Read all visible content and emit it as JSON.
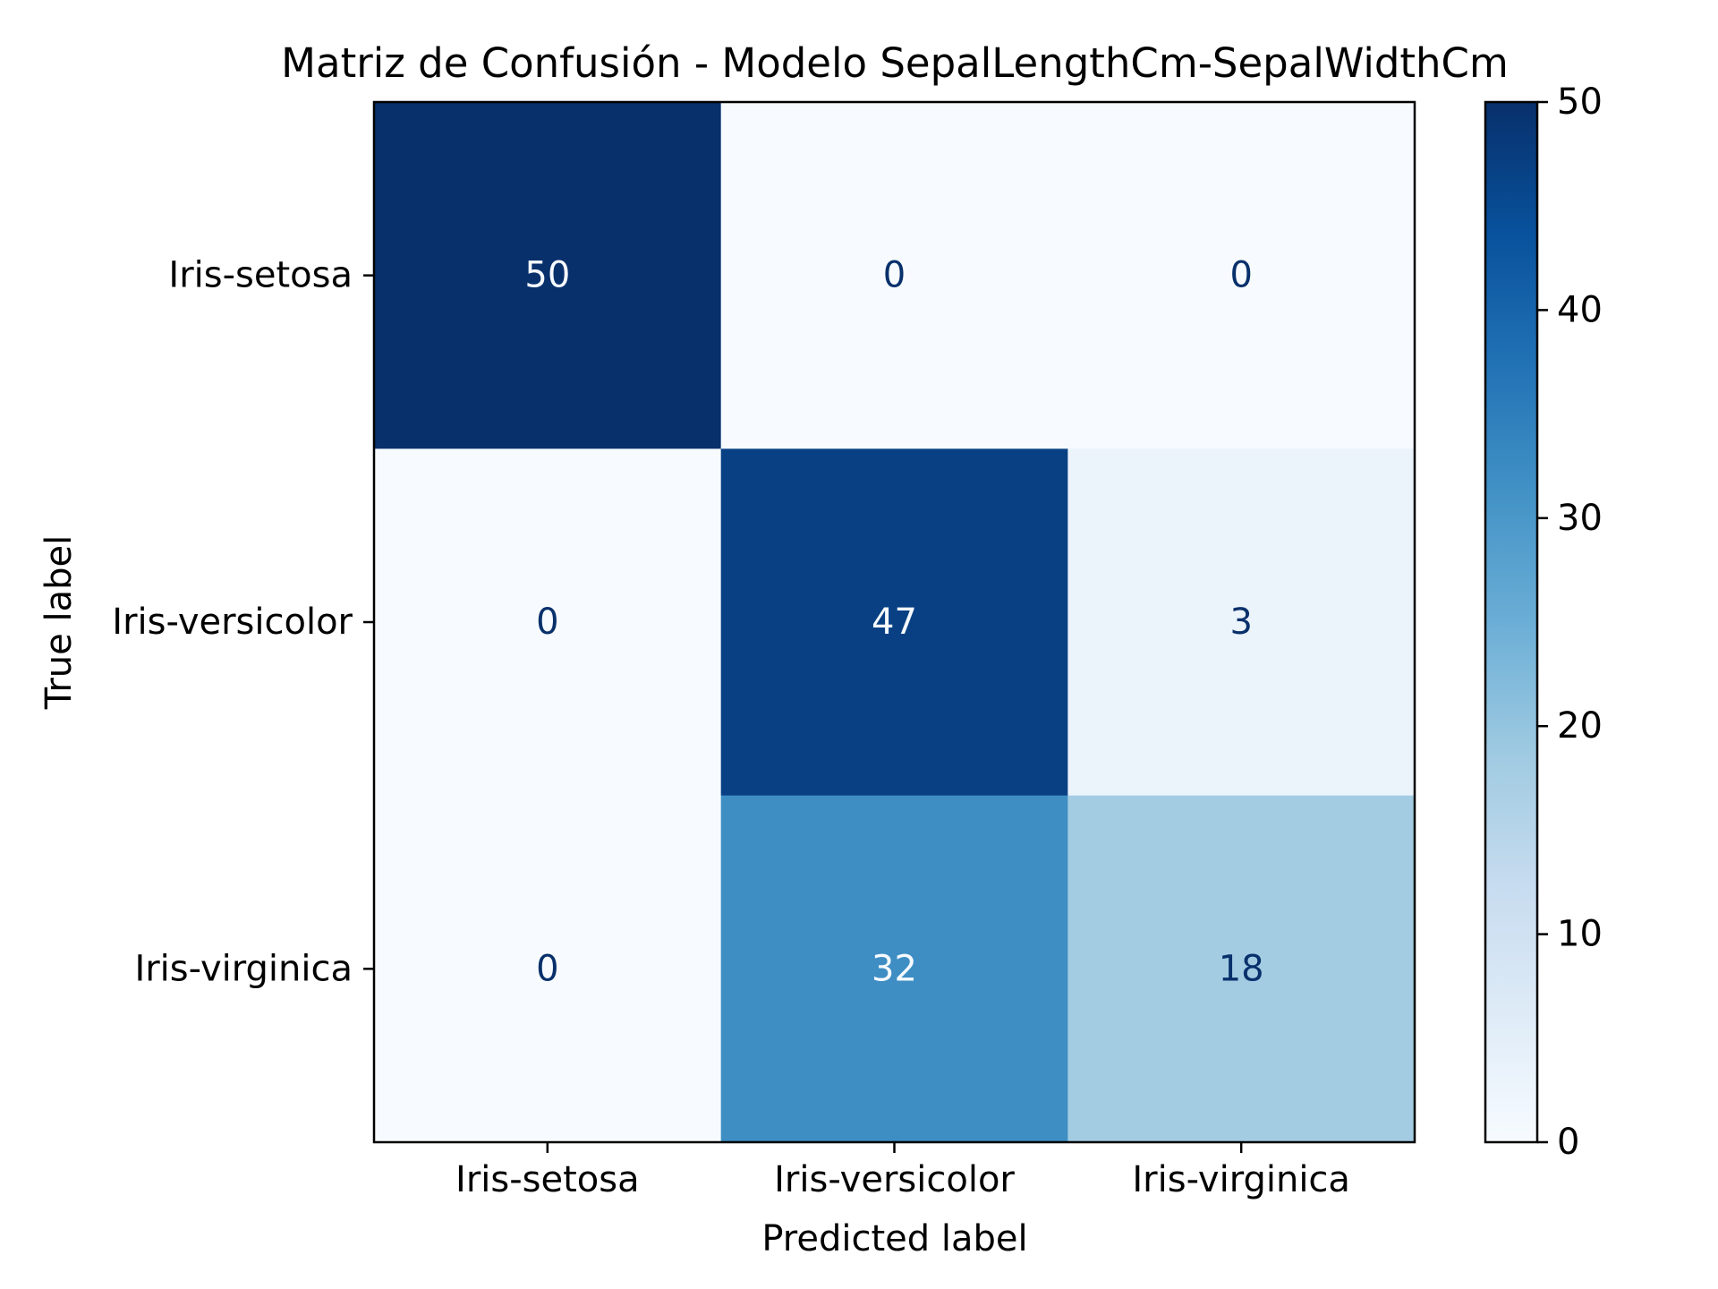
{
  "chart_data": {
    "type": "heatmap",
    "title": "Matriz de Confusión - Modelo SepalLengthCm-SepalWidthCm",
    "xlabel": "Predicted label",
    "ylabel": "True label",
    "x_categories": [
      "Iris-setosa",
      "Iris-versicolor",
      "Iris-virginica"
    ],
    "y_categories": [
      "Iris-setosa",
      "Iris-versicolor",
      "Iris-virginica"
    ],
    "matrix": [
      [
        50,
        0,
        0
      ],
      [
        0,
        47,
        3
      ],
      [
        0,
        32,
        18
      ]
    ],
    "colorbar": {
      "range": [
        0,
        50
      ],
      "ticks": [
        "0",
        "10",
        "20",
        "30",
        "40",
        "50"
      ],
      "colormap": "Blues"
    }
  }
}
